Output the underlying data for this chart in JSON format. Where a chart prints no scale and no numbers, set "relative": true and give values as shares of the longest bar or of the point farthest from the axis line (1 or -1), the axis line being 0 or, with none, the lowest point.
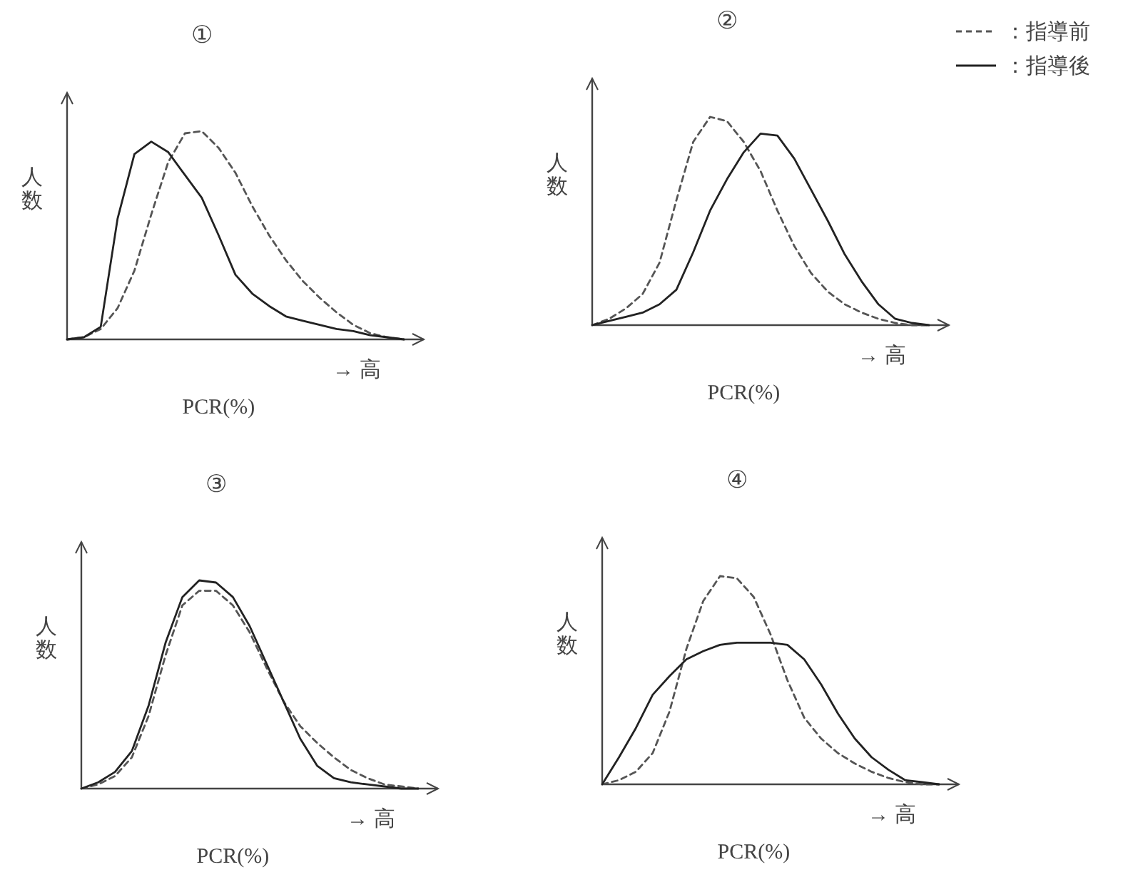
{
  "chart_data": [
    {
      "type": "line",
      "title": "①",
      "xlabel": "PCR(%)",
      "ylabel": "人数",
      "annotations": [
        "→ 高"
      ],
      "relative": true,
      "categories": [
        null,
        null,
        null,
        null,
        null,
        null,
        null,
        null,
        null,
        null,
        null,
        null,
        null,
        null,
        null,
        null,
        null,
        null,
        null,
        null,
        null
      ],
      "series": [
        {
          "color": "#555555",
          "line_style": "dashed",
          "values": [
            0,
            0.01,
            0.05,
            0.15,
            0.33,
            0.6,
            0.85,
            0.99,
            1,
            0.92,
            0.8,
            0.64,
            0.5,
            0.38,
            0.28,
            0.2,
            0.13,
            0.07,
            0.03,
            0.01,
            0
          ]
        },
        {
          "color": "#222222",
          "line_style": "solid",
          "values": [
            0,
            0.01,
            0.06,
            0.58,
            0.89,
            0.95,
            0.9,
            0.79,
            0.68,
            0.5,
            0.31,
            0.22,
            0.16,
            0.11,
            0.09,
            0.07,
            0.05,
            0.04,
            0.02,
            0.01,
            0
          ]
        }
      ]
    },
    {
      "type": "line",
      "title": "②",
      "xlabel": "PCR(%)",
      "ylabel": "人数",
      "annotations": [
        "→ 高"
      ],
      "relative": true,
      "legend": "top right",
      "categories": [
        null,
        null,
        null,
        null,
        null,
        null,
        null,
        null,
        null,
        null,
        null,
        null,
        null,
        null,
        null,
        null,
        null,
        null,
        null,
        null,
        null
      ],
      "series": [
        {
          "name": "：指導前",
          "color": "#555555",
          "line_style": "dashed",
          "values": [
            0,
            0.03,
            0.08,
            0.15,
            0.3,
            0.6,
            0.88,
            1,
            0.98,
            0.88,
            0.74,
            0.55,
            0.38,
            0.25,
            0.16,
            0.1,
            0.06,
            0.03,
            0.01,
            0,
            0
          ]
        },
        {
          "name": "：指導後",
          "color": "#222222",
          "line_style": "solid",
          "values": [
            0,
            0.02,
            0.04,
            0.06,
            0.1,
            0.17,
            0.35,
            0.55,
            0.7,
            0.83,
            0.92,
            0.91,
            0.8,
            0.65,
            0.5,
            0.34,
            0.21,
            0.1,
            0.03,
            0.01,
            0
          ]
        }
      ]
    },
    {
      "type": "line",
      "title": "③",
      "xlabel": "PCR(%)",
      "ylabel": "人数",
      "annotations": [
        "→ 高"
      ],
      "relative": true,
      "categories": [
        null,
        null,
        null,
        null,
        null,
        null,
        null,
        null,
        null,
        null,
        null,
        null,
        null,
        null,
        null,
        null,
        null,
        null,
        null,
        null,
        null
      ],
      "series": [
        {
          "color": "#555555",
          "line_style": "dashed",
          "values": [
            0,
            0.02,
            0.06,
            0.15,
            0.35,
            0.64,
            0.88,
            0.95,
            0.95,
            0.88,
            0.75,
            0.58,
            0.42,
            0.3,
            0.22,
            0.15,
            0.09,
            0.05,
            0.02,
            0.01,
            0
          ]
        },
        {
          "color": "#222222",
          "line_style": "solid",
          "values": [
            0,
            0.03,
            0.08,
            0.18,
            0.4,
            0.7,
            0.92,
            1,
            0.99,
            0.92,
            0.78,
            0.6,
            0.42,
            0.24,
            0.11,
            0.05,
            0.03,
            0.02,
            0.01,
            0,
            0
          ]
        }
      ]
    },
    {
      "type": "line",
      "title": "④",
      "xlabel": "PCR(%)",
      "ylabel": "人数",
      "annotations": [
        "→ 高"
      ],
      "relative": true,
      "categories": [
        null,
        null,
        null,
        null,
        null,
        null,
        null,
        null,
        null,
        null,
        null,
        null,
        null,
        null,
        null,
        null,
        null,
        null,
        null,
        null,
        null
      ],
      "series": [
        {
          "color": "#555555",
          "line_style": "dashed",
          "values": [
            0,
            0.02,
            0.06,
            0.15,
            0.35,
            0.65,
            0.88,
            1,
            0.99,
            0.9,
            0.72,
            0.5,
            0.32,
            0.22,
            0.15,
            0.1,
            0.06,
            0.03,
            0.01,
            0,
            0
          ]
        },
        {
          "color": "#222222",
          "line_style": "solid",
          "values": [
            0,
            0.13,
            0.27,
            0.43,
            0.52,
            0.6,
            0.64,
            0.67,
            0.68,
            0.68,
            0.68,
            0.67,
            0.6,
            0.48,
            0.34,
            0.22,
            0.13,
            0.07,
            0.02,
            0.01,
            0
          ]
        }
      ]
    }
  ]
}
